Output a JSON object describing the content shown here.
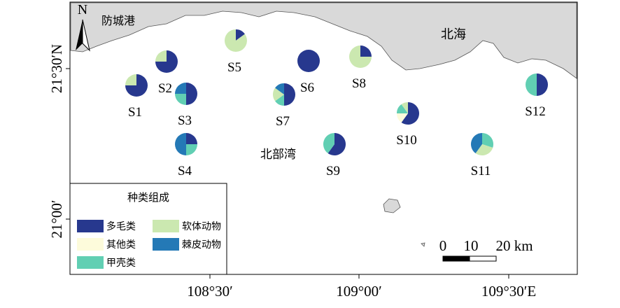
{
  "map": {
    "north": "N",
    "places": [
      "防城港",
      "北海",
      "北部湾"
    ],
    "lon_labels": [
      "108°30′",
      "109°00′",
      "109°30′E"
    ],
    "lat_labels": [
      "21°30′N",
      "21°00′"
    ],
    "scale_labels": [
      "0",
      "10",
      "20 km"
    ],
    "legend": {
      "title": "种类组成",
      "categories": [
        {
          "name": "多毛类",
          "color": "#27388e"
        },
        {
          "name": "其他类",
          "color": "#fdfbdb"
        },
        {
          "name": "甲壳类",
          "color": "#61cfb3"
        },
        {
          "name": "软体动物",
          "color": "#cbe8b0"
        },
        {
          "name": "棘皮动物",
          "color": "#2479b6"
        }
      ]
    },
    "stations": [
      {
        "name": "S1",
        "values": [
          75,
          0,
          0,
          25,
          0
        ]
      },
      {
        "name": "S2",
        "values": [
          75,
          0,
          0,
          25,
          0
        ]
      },
      {
        "name": "S3",
        "values": [
          50,
          0,
          25,
          0,
          25
        ]
      },
      {
        "name": "S4",
        "values": [
          25,
          0,
          25,
          0,
          50
        ]
      },
      {
        "name": "S5",
        "values": [
          15,
          0,
          0,
          85,
          0
        ]
      },
      {
        "name": "S6",
        "values": [
          100,
          0,
          0,
          0,
          0
        ]
      },
      {
        "name": "S7",
        "values": [
          50,
          0,
          15,
          20,
          15
        ]
      },
      {
        "name": "S8",
        "values": [
          25,
          0,
          0,
          75,
          0
        ]
      },
      {
        "name": "S9",
        "values": [
          60,
          0,
          40,
          0,
          0
        ]
      },
      {
        "name": "S10",
        "values": [
          60,
          15,
          15,
          10,
          0
        ]
      },
      {
        "name": "S11",
        "values": [
          0,
          0,
          30,
          30,
          40
        ]
      },
      {
        "name": "S12",
        "values": [
          50,
          0,
          50,
          0,
          0
        ]
      }
    ]
  }
}
